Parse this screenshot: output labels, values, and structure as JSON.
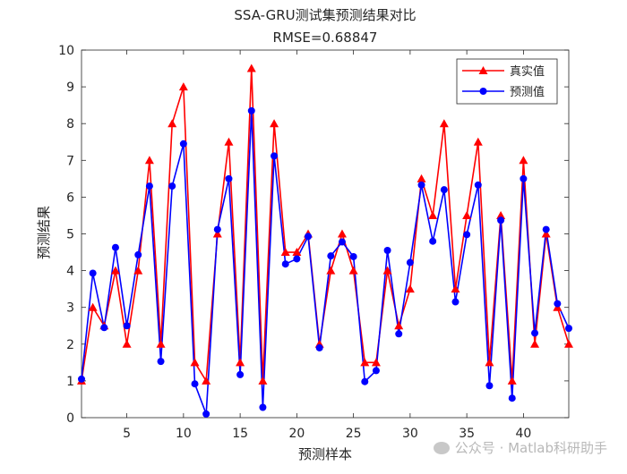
{
  "chart_data": {
    "type": "line",
    "title": "SSA-GRU测试集预测结果对比",
    "subtitle": "RMSE=0.68847",
    "xlabel": "预测样本",
    "ylabel": "预测结果",
    "xlim": [
      1,
      44
    ],
    "ylim": [
      0,
      10
    ],
    "x_ticks": [
      5,
      10,
      15,
      20,
      25,
      30,
      35,
      40
    ],
    "y_ticks": [
      0,
      1,
      2,
      3,
      4,
      5,
      6,
      7,
      8,
      9,
      10
    ],
    "grid": false,
    "legend_position": "top-right",
    "x": [
      1,
      2,
      3,
      4,
      5,
      6,
      7,
      8,
      9,
      10,
      11,
      12,
      13,
      14,
      15,
      16,
      17,
      18,
      19,
      20,
      21,
      22,
      23,
      24,
      25,
      26,
      27,
      28,
      29,
      30,
      31,
      32,
      33,
      34,
      35,
      36,
      37,
      38,
      39,
      40,
      41,
      42,
      43,
      44
    ],
    "series": [
      {
        "name": "真实值",
        "color": "#ff0000",
        "marker": "triangle",
        "values": [
          1,
          3,
          2.5,
          4,
          2,
          4,
          7,
          2,
          8,
          9,
          1.5,
          1,
          5,
          7.5,
          1.5,
          9.5,
          1,
          8,
          4.5,
          4.5,
          5,
          2,
          4,
          5,
          4,
          1.5,
          1.5,
          4,
          2.5,
          3.5,
          6.5,
          5.5,
          8,
          3.5,
          5.5,
          7.5,
          1.5,
          5.5,
          1,
          7,
          2,
          5,
          3,
          2
        ]
      },
      {
        "name": "预测值",
        "color": "#0000ff",
        "marker": "circle",
        "values": [
          1.05,
          3.93,
          2.45,
          4.63,
          2.5,
          4.43,
          6.3,
          1.53,
          6.3,
          7.45,
          0.92,
          0.1,
          5.12,
          6.5,
          1.17,
          8.35,
          0.28,
          7.12,
          4.18,
          4.32,
          4.93,
          1.9,
          4.4,
          4.78,
          4.38,
          0.98,
          1.28,
          4.55,
          2.28,
          4.22,
          6.33,
          4.8,
          6.2,
          3.15,
          4.98,
          6.33,
          0.87,
          5.37,
          0.53,
          6.5,
          2.3,
          5.12,
          3.1,
          2.43
        ]
      }
    ]
  },
  "watermark": {
    "text": "公众号 · Matlab科研助手"
  }
}
